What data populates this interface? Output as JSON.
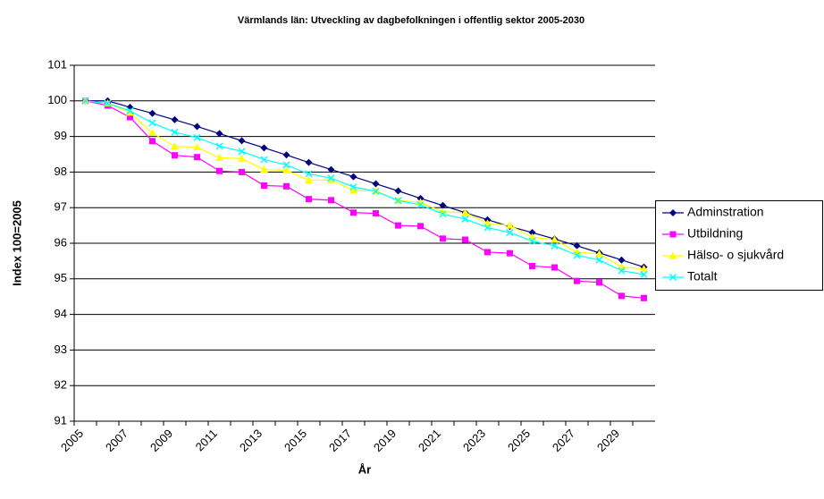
{
  "chart_data": {
    "type": "line",
    "title": "Värmlands län: Utveckling av dagbefolkningen i offentlig sektor 2005-2030",
    "x_label": "År",
    "y_label": "Index 100=2005",
    "categories": [
      "2005",
      null,
      "2007",
      null,
      "2009",
      null,
      "2011",
      null,
      "2013",
      null,
      "2015",
      null,
      "2017",
      null,
      "2019",
      null,
      "2021",
      null,
      "2023",
      null,
      "2025",
      null,
      "2027",
      null,
      "2029",
      null
    ],
    "series": [
      {
        "name": "Adminstration",
        "color": "#000080",
        "marker": "diamond",
        "values": [
          100,
          100,
          99.82,
          99.65,
          99.47,
          99.28,
          99.08,
          98.88,
          98.68,
          98.48,
          98.27,
          98.07,
          97.87,
          97.67,
          97.47,
          97.26,
          97.06,
          96.86,
          96.66,
          96.47,
          96.3,
          96.12,
          95.93,
          95.73,
          95.53,
          95.33
        ]
      },
      {
        "name": "Utbildning",
        "color": "#ff00ff",
        "marker": "square",
        "values": [
          100,
          99.87,
          99.54,
          98.87,
          98.47,
          98.42,
          98.03,
          98.0,
          97.62,
          97.6,
          97.24,
          97.21,
          96.86,
          96.84,
          96.5,
          96.48,
          96.13,
          96.1,
          95.75,
          95.72,
          95.36,
          95.32,
          94.94,
          94.9,
          94.52,
          94.46
        ]
      },
      {
        "name": "Hälso- o sjukvård",
        "color": "#ffff00",
        "marker": "triangle",
        "values": [
          100,
          99.93,
          99.67,
          99.1,
          98.72,
          98.7,
          98.4,
          98.38,
          98.07,
          98.05,
          97.77,
          97.78,
          97.48,
          97.47,
          97.2,
          97.15,
          96.88,
          96.86,
          96.56,
          96.5,
          96.17,
          96.1,
          95.75,
          95.7,
          95.33,
          95.28
        ]
      },
      {
        "name": "Totalt",
        "color": "#00ffff",
        "marker": "x",
        "values": [
          100,
          99.93,
          99.72,
          99.38,
          99.12,
          98.97,
          98.73,
          98.58,
          98.35,
          98.2,
          97.95,
          97.83,
          97.58,
          97.46,
          97.2,
          97.08,
          96.82,
          96.68,
          96.44,
          96.3,
          96.06,
          95.93,
          95.66,
          95.53,
          95.23,
          95.12
        ]
      }
    ],
    "ylim": [
      91,
      101
    ],
    "yticks": [
      91,
      92,
      93,
      94,
      95,
      96,
      97,
      98,
      99,
      100,
      101
    ],
    "grid": true,
    "legend": "right"
  }
}
